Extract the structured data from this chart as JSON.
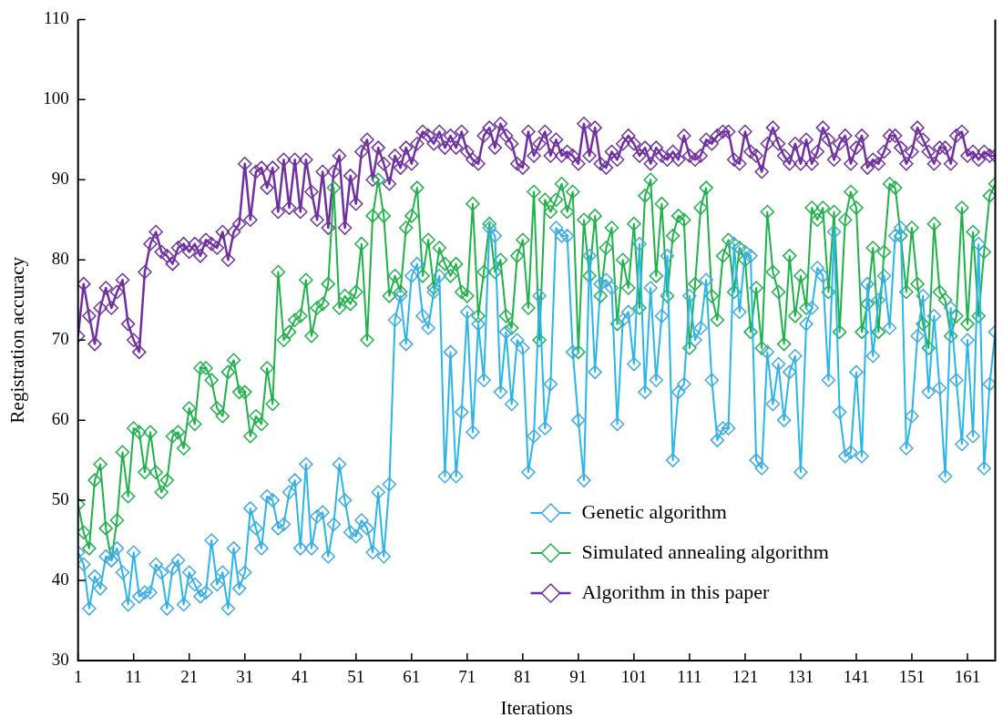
{
  "chart_data": {
    "type": "line",
    "xlabel": "Iterations",
    "ylabel": "Registration accuracy",
    "x": [
      1,
      2,
      3,
      4,
      5,
      6,
      7,
      8,
      9,
      10,
      11,
      12,
      13,
      14,
      15,
      16,
      17,
      18,
      19,
      20,
      21,
      22,
      23,
      24,
      25,
      26,
      27,
      28,
      29,
      30,
      31,
      32,
      33,
      34,
      35,
      36,
      37,
      38,
      39,
      40,
      41,
      42,
      43,
      44,
      45,
      46,
      47,
      48,
      49,
      50,
      51,
      52,
      53,
      54,
      55,
      56,
      57,
      58,
      59,
      60,
      61,
      62,
      63,
      64,
      65,
      66,
      67,
      68,
      69,
      70,
      71,
      72,
      73,
      74,
      75,
      76,
      77,
      78,
      79,
      80,
      81,
      82,
      83,
      84,
      85,
      86,
      87,
      88,
      89,
      90,
      91,
      92,
      93,
      94,
      95,
      96,
      97,
      98,
      99,
      100,
      101,
      102,
      103,
      104,
      105,
      106,
      107,
      108,
      109,
      110,
      111,
      112,
      113,
      114,
      115,
      116,
      117,
      118,
      119,
      120,
      121,
      122,
      123,
      124,
      125,
      126,
      127,
      128,
      129,
      130,
      131,
      132,
      133,
      134,
      135,
      136,
      137,
      138,
      139,
      140,
      141,
      142,
      143,
      144,
      145,
      146,
      147,
      148,
      149,
      150,
      151,
      152,
      153,
      154,
      155,
      156,
      157,
      158,
      159,
      160,
      161,
      162,
      163,
      164,
      165,
      166
    ],
    "series": [
      {
        "name": "Genetic algorithm",
        "color": "#29b6e8",
        "values": [
          43.5,
          42,
          36.5,
          40.5,
          39,
          43,
          42.5,
          44,
          41,
          37,
          43.5,
          38,
          38.5,
          38.5,
          42,
          41,
          36.5,
          41.5,
          42.5,
          37,
          41,
          39.5,
          38,
          38.5,
          45,
          39.5,
          41,
          36.5,
          44,
          39,
          41,
          49,
          46.5,
          44,
          50.5,
          50,
          46.5,
          47,
          51,
          52.5,
          44,
          54.5,
          44,
          48,
          48.5,
          43,
          47,
          54.5,
          50,
          46,
          45.5,
          47.5,
          46.5,
          43.5,
          51,
          43,
          52,
          72.5,
          75.5,
          69.5,
          78,
          79.5,
          73,
          71.5,
          76,
          78,
          53,
          68.5,
          53,
          61,
          73.5,
          58.5,
          72,
          65,
          84,
          83,
          63.5,
          71,
          62,
          70,
          69,
          53.5,
          58,
          75.5,
          59,
          64.5,
          84,
          83,
          83,
          68.5,
          60,
          52.5,
          80.5,
          66,
          77,
          77.5,
          76.5,
          59.5,
          72.5,
          73.5,
          67,
          82,
          63.5,
          76.5,
          65,
          73,
          80.5,
          55,
          63.5,
          64.5,
          75.5,
          70,
          71.5,
          77.5,
          65,
          57.5,
          59,
          59,
          82,
          73.5,
          81,
          80.5,
          55,
          54,
          68.5,
          62,
          67,
          60,
          66,
          68,
          53.5,
          72,
          74,
          79,
          78,
          65,
          83.5,
          61,
          55.5,
          56,
          66,
          55.5,
          77,
          68,
          75,
          78,
          71.5,
          83,
          84,
          56.5,
          60.5,
          70.5,
          75.5,
          63.5,
          73,
          64,
          53,
          74,
          65,
          57,
          70,
          58,
          82,
          54,
          64.5,
          71
        ]
      },
      {
        "name": "Simulated annealing algorithm",
        "color": "#1fb24a",
        "values": [
          49.5,
          46,
          44,
          52.5,
          54.5,
          46.5,
          42.5,
          47.5,
          56,
          50.5,
          59,
          58.5,
          53.5,
          58.5,
          53.5,
          51,
          52.5,
          58,
          58.5,
          56.5,
          61.5,
          59.5,
          66.5,
          66.5,
          65,
          61.5,
          60.5,
          66,
          67.5,
          63.5,
          63.5,
          58,
          60.5,
          59.5,
          66.5,
          62,
          78.5,
          70,
          71,
          72.5,
          73,
          77.5,
          70.5,
          74,
          74.5,
          77,
          89,
          74,
          75.5,
          74.5,
          76,
          82,
          70,
          85.5,
          90,
          85.5,
          75.5,
          78,
          76,
          84,
          85.5,
          89,
          78,
          82.5,
          76.5,
          81.5,
          79.5,
          78,
          79.5,
          76,
          75.5,
          87,
          73,
          78.5,
          84.5,
          78.5,
          80,
          73,
          71.5,
          80.5,
          82.5,
          74,
          88.5,
          70,
          87.5,
          86,
          87.5,
          89.5,
          86,
          88.5,
          68.5,
          85,
          78,
          85.5,
          75.5,
          81.5,
          84,
          72,
          80,
          76.5,
          84.5,
          74,
          88,
          90,
          78,
          87,
          75.5,
          83,
          85.5,
          85,
          69,
          77,
          86.5,
          89,
          75.5,
          72.5,
          80.5,
          82.5,
          76,
          81.5,
          80,
          71,
          76.5,
          69,
          86,
          78.5,
          76,
          69.5,
          80.5,
          73,
          78,
          74,
          86.5,
          85,
          86.5,
          76,
          86,
          71,
          85,
          88.5,
          86.5,
          71,
          74.5,
          81.5,
          71,
          81,
          89.5,
          89,
          83,
          76,
          84,
          77,
          72,
          69,
          84.5,
          76,
          75,
          70.5,
          73,
          86.5,
          72,
          83.5,
          73,
          81,
          88,
          89.5
        ]
      },
      {
        "name": "Algorithm in this paper",
        "color": "#7030a0",
        "values": [
          70.5,
          77,
          73,
          69.5,
          74,
          76.5,
          74,
          76,
          77.5,
          72,
          70,
          68.5,
          78.5,
          82,
          83.5,
          81,
          80.5,
          79.5,
          81.5,
          82,
          81,
          82,
          80.5,
          82.5,
          82,
          81.5,
          83.5,
          80,
          83.5,
          84.5,
          92,
          85,
          91,
          91.5,
          89,
          91.5,
          86,
          92.5,
          86.5,
          92.5,
          86,
          92.5,
          88.5,
          85,
          91,
          84,
          91,
          93,
          84,
          90.5,
          87,
          93.5,
          95,
          90,
          94,
          92,
          89.5,
          93,
          91.5,
          94,
          92,
          94.5,
          96,
          95.5,
          94.5,
          96,
          94,
          95.5,
          94,
          96,
          93.5,
          92.5,
          92,
          95.5,
          96.5,
          94,
          97,
          95.5,
          94.5,
          92,
          91.5,
          96,
          93,
          94.5,
          96,
          93,
          95,
          93,
          93.5,
          93,
          92,
          97,
          93,
          96.5,
          92,
          91.5,
          93.5,
          92.5,
          94.5,
          95.5,
          94.5,
          93,
          94,
          92,
          94,
          93,
          92.5,
          93.5,
          92.5,
          95.5,
          93,
          92.5,
          93,
          95,
          94.5,
          95.5,
          96,
          96,
          92.5,
          92,
          96,
          93.5,
          93,
          91,
          94.5,
          96.5,
          94.5,
          93,
          92,
          94.5,
          92,
          95,
          92,
          93.5,
          96.5,
          95,
          92.5,
          94.5,
          95.5,
          92,
          94,
          95.5,
          91.5,
          92.5,
          92,
          93.5,
          95.5,
          95.5,
          94,
          92,
          93.5,
          96.5,
          95,
          93.5,
          92,
          94,
          94,
          92,
          95.5,
          96,
          93,
          93.5,
          92.5,
          93.5,
          93,
          93
        ]
      }
    ],
    "xlim": [
      1,
      166
    ],
    "xticks": [
      1,
      11,
      21,
      31,
      41,
      51,
      61,
      71,
      81,
      91,
      101,
      111,
      121,
      131,
      141,
      151,
      161
    ],
    "ylim": [
      30,
      110
    ],
    "yticks": [
      30,
      40,
      50,
      60,
      70,
      80,
      90,
      100,
      110
    ],
    "legend": "bottom right",
    "marker": "diamond",
    "line_style": "solid"
  }
}
